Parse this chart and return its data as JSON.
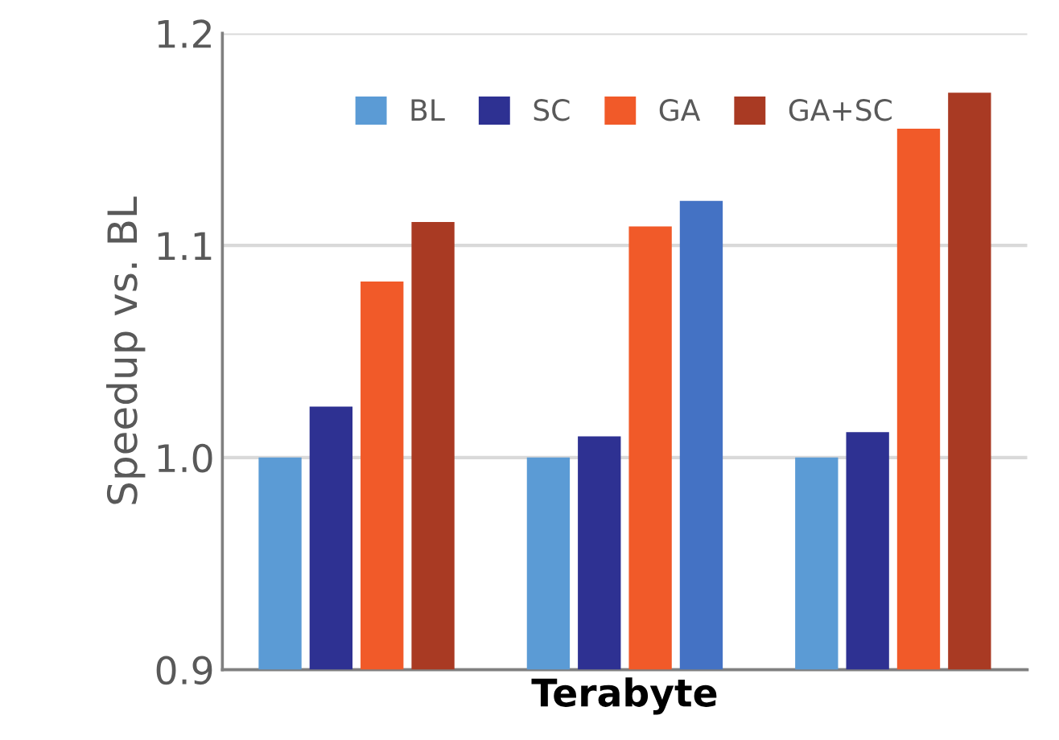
{
  "chart_data": {
    "type": "bar",
    "ylabel": "Speedup vs. BL",
    "categories": [
      null,
      "Terabyte",
      null
    ],
    "series": [
      {
        "name": "BL",
        "color": "#5b9bd5",
        "values": [
          1.0,
          1.0,
          1.0
        ]
      },
      {
        "name": "SC",
        "color": "#2e3192",
        "values": [
          1.024,
          1.01,
          1.012
        ]
      },
      {
        "name": "GA",
        "color": "#f15a29",
        "values": [
          1.083,
          1.109,
          1.155
        ]
      },
      {
        "name": "GA+SC",
        "color": "#a93a23",
        "colors": [
          "#a93a23",
          "#4472c4",
          "#a93a23"
        ],
        "values": [
          1.111,
          1.121,
          1.172
        ]
      }
    ],
    "ylim": [
      0.9,
      1.2
    ],
    "yticks": [
      {
        "value": 0.9,
        "label": "0.9"
      },
      {
        "value": 1.0,
        "label": "1.0"
      },
      {
        "value": 1.1,
        "label": "1.1"
      },
      {
        "value": 1.2,
        "label": "1.2"
      }
    ],
    "grid": "y",
    "legend": "top"
  }
}
